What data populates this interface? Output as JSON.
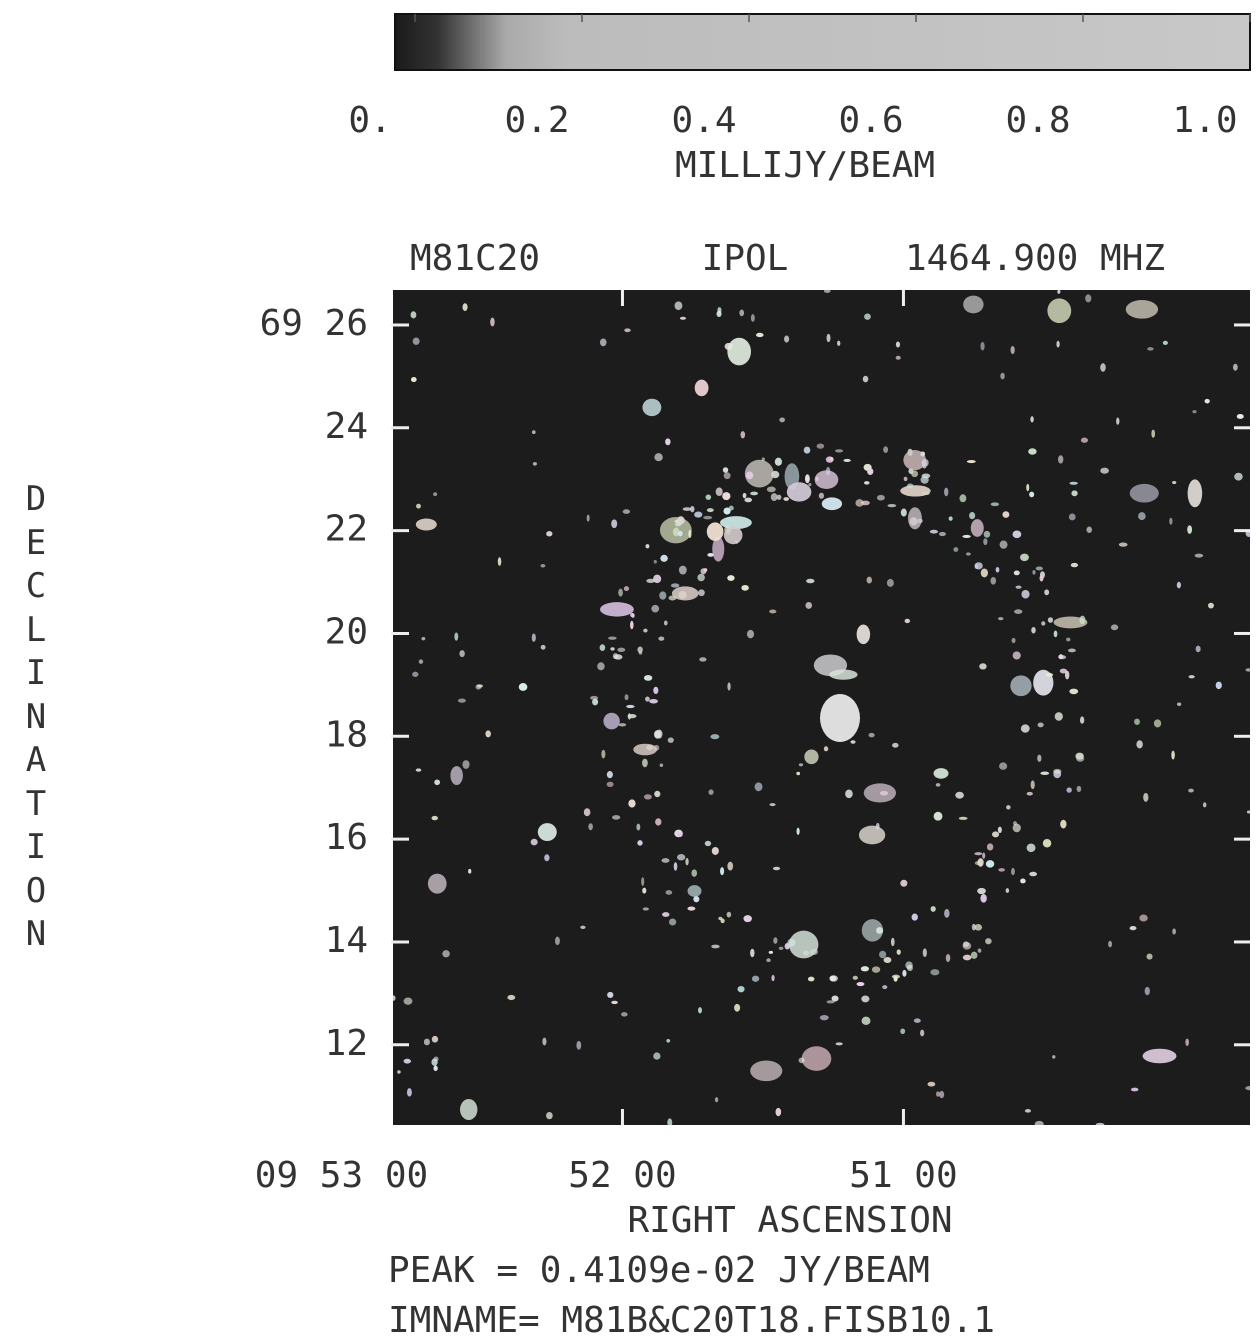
{
  "chart_data": {
    "type": "image",
    "titles": [
      "M81C20",
      "IPOL",
      "1464.900 MHZ"
    ],
    "colorbar": {
      "label": "MILLIJY/BEAM",
      "lim": [
        0,
        1
      ],
      "ticks": [
        {
          "value": 0,
          "label": "0."
        },
        0.2,
        0.4,
        0.6,
        0.8,
        {
          "value": 1,
          "label": "1.0"
        }
      ]
    },
    "x_label": "RIGHT ASCENSION",
    "y_label": "DECLINATION",
    "xlim": [
      169,
      -14
    ],
    "xticks": [
      {
        "value": 180,
        "label": "09 53 00"
      },
      {
        "value": 120,
        "label": "52 00"
      },
      {
        "value": 60,
        "label": "51 00"
      }
    ],
    "ylim": [
      10.44,
      26.68
    ],
    "yticks": [
      {
        "value": 26,
        "label": "69 26"
      },
      24,
      22,
      20,
      18,
      16,
      14,
      12
    ],
    "footer": [
      "PEAK =  0.4109e-02 JY/BEAM",
      "IMNAME= M81B&C20T18.FISB10.1"
    ]
  }
}
